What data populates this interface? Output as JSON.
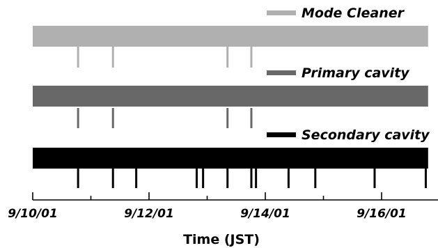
{
  "chart_data": {
    "type": "timeline",
    "xlabel": "Time (JST)",
    "tick_labels": [
      "9/10/01",
      "9/12/01",
      "9/14/01",
      "9/16/01"
    ],
    "xlim": [
      0,
      6.8
    ],
    "x_unit": "days since 9/10/01 00:00",
    "series": [
      {
        "name": "Mode Cleaner",
        "color": "#b0b0b0",
        "locked_intervals": [
          [
            0,
            6.8
          ]
        ],
        "unlock_events": [
          0.78,
          1.38,
          3.35,
          3.76
        ]
      },
      {
        "name": "Primary cavity",
        "color": "#686868",
        "locked_intervals": [
          [
            0,
            6.8
          ]
        ],
        "unlock_events": [
          0.78,
          1.38,
          3.35,
          3.76
        ]
      },
      {
        "name": "Secondary cavity",
        "color": "#000000",
        "locked_intervals": [
          [
            0,
            6.8
          ]
        ],
        "unlock_events": [
          0.78,
          1.38,
          1.78,
          2.82,
          2.93,
          3.35,
          3.76,
          3.84,
          4.4,
          4.86,
          5.88,
          6.76
        ]
      }
    ]
  }
}
